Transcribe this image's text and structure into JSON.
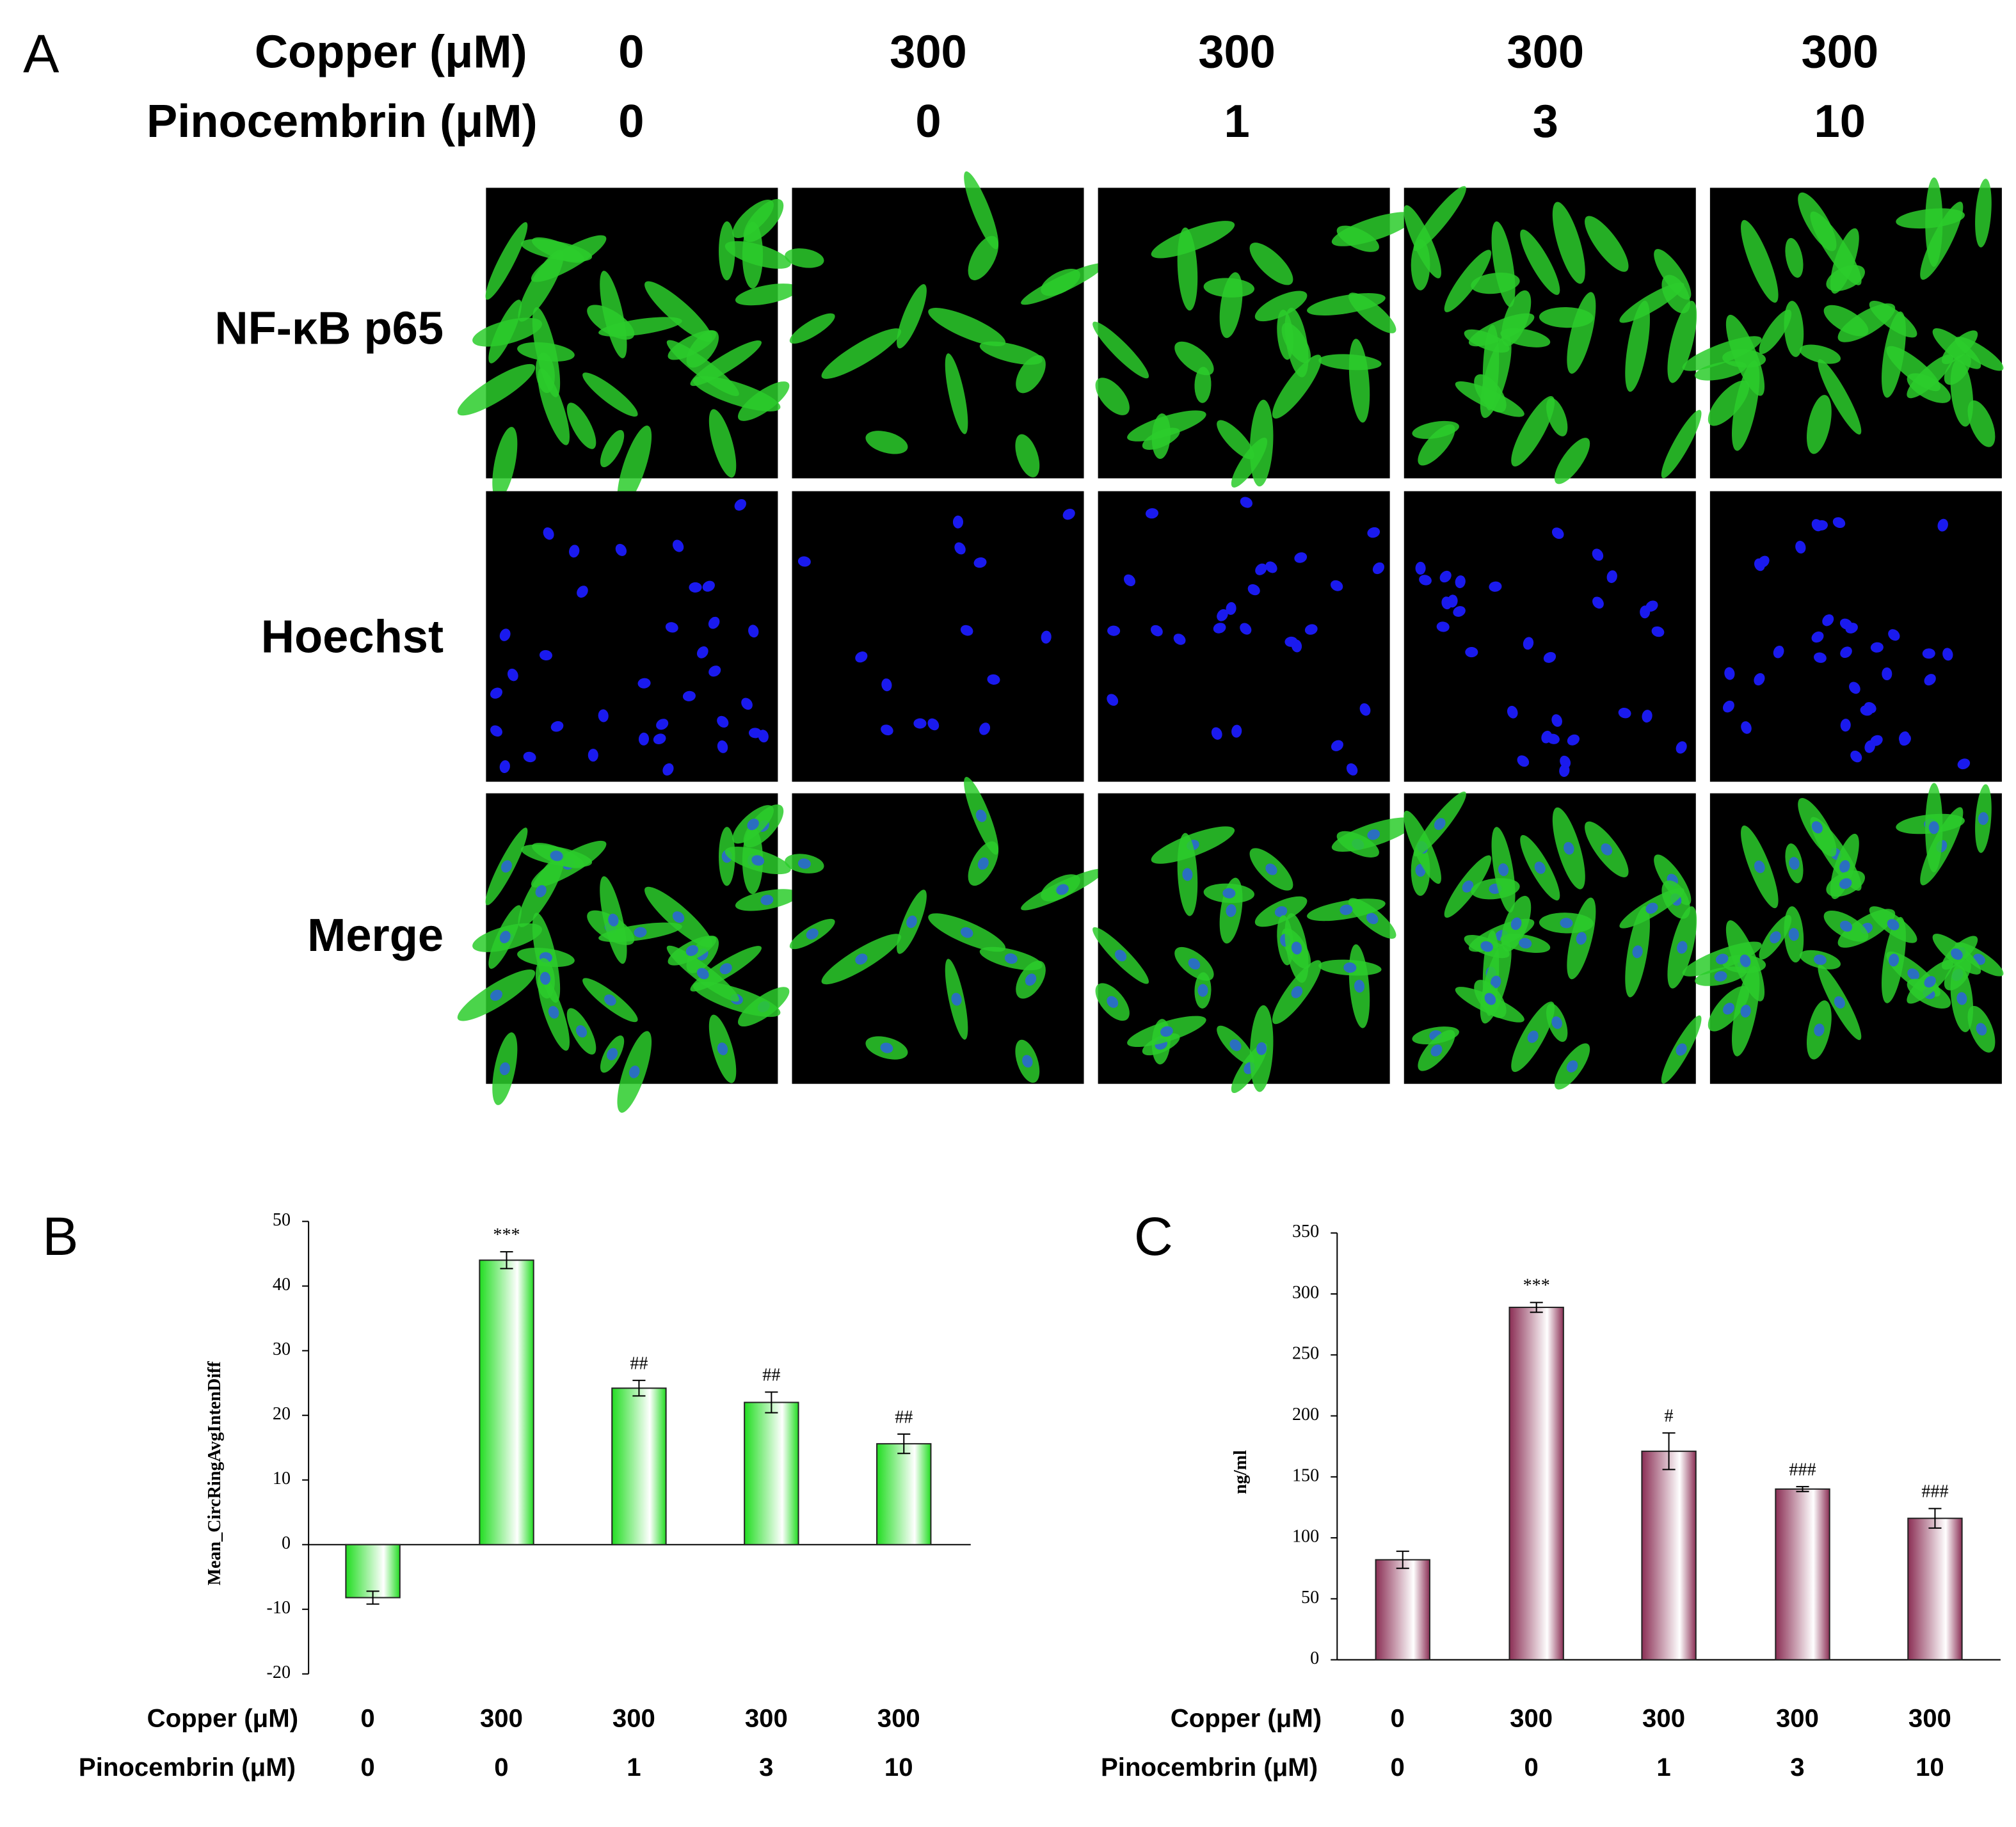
{
  "panel_a": {
    "label": "A",
    "condition_rows": [
      {
        "name": "Copper (μM)",
        "values": [
          0,
          300,
          300,
          300,
          300
        ]
      },
      {
        "name": "Pinocembrin (μM)",
        "values": [
          0,
          0,
          1,
          3,
          10
        ]
      }
    ],
    "stain_rows": [
      "NF-κB p65",
      "Hoechst",
      "Merge"
    ]
  },
  "chart_data": [
    {
      "type": "bar",
      "panel_label": "B",
      "y_label": "Mean_CircRingAvgIntenDiff",
      "category_rows": [
        {
          "name": "Copper  (μM)",
          "labels": [
            0,
            300,
            300,
            300,
            300
          ]
        },
        {
          "name": "Pinocembrin (μM)",
          "labels": [
            0,
            0,
            1,
            3,
            10
          ]
        }
      ],
      "values": [
        -8.2,
        44,
        24.2,
        22,
        15.6
      ],
      "errors": [
        1,
        1.3,
        1.2,
        1.6,
        1.5
      ],
      "annotations": [
        null,
        "***",
        "##",
        "##",
        "##"
      ],
      "color": "#22dd22",
      "ylim": [
        -20,
        50
      ],
      "yticks": [
        -20,
        -10,
        0,
        10,
        20,
        30,
        40,
        50
      ]
    },
    {
      "type": "bar",
      "panel_label": "C",
      "y_label": "ng/ml",
      "category_rows": [
        {
          "name": "Copper  (μM)",
          "labels": [
            0,
            300,
            300,
            300,
            300
          ]
        },
        {
          "name": "Pinocembrin (μM)",
          "labels": [
            0,
            0,
            1,
            3,
            10
          ]
        }
      ],
      "values": [
        82,
        289,
        171,
        140,
        116
      ],
      "errors": [
        7,
        4,
        15,
        2,
        8
      ],
      "annotations": [
        null,
        "***",
        "#",
        "###",
        "###"
      ],
      "color": "#8b2f55",
      "ylim": [
        0,
        350
      ],
      "yticks": [
        0,
        50,
        100,
        150,
        200,
        250,
        300,
        350
      ]
    }
  ]
}
